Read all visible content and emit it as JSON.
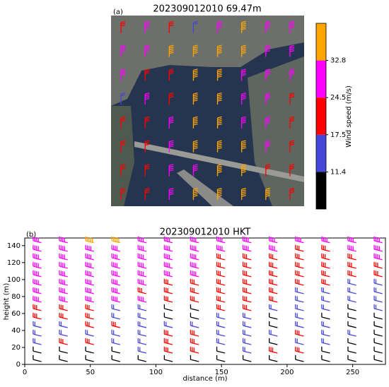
{
  "chart_data": [
    {
      "type": "barbs_image",
      "label": "(a)",
      "title": "202309012010  69.47m",
      "values": [
        [
          21,
          28,
          21,
          15,
          28,
          35,
          28,
          28
        ],
        [
          28,
          28,
          35,
          35,
          35,
          35,
          28,
          28
        ],
        [
          28,
          21,
          21,
          35,
          35,
          28,
          28,
          28
        ],
        [
          15,
          28,
          21,
          35,
          35,
          28,
          28,
          21
        ],
        [
          21,
          21,
          28,
          35,
          35,
          28,
          28,
          21
        ],
        [
          21,
          21,
          28,
          35,
          35,
          35,
          28,
          21
        ],
        [
          21,
          21,
          28,
          28,
          35,
          35,
          21,
          21
        ],
        [
          21,
          21,
          28,
          35,
          35,
          35,
          35,
          21
        ]
      ],
      "colorbar": {
        "label": "Wind speed (m/s)",
        "ticks": [
          11.4,
          17.5,
          24.5,
          32.8
        ],
        "colors": [
          "#000000",
          "#4646d8",
          "#ff0000",
          "#ff00ff",
          "#ffa500"
        ]
      }
    },
    {
      "type": "barbs",
      "label": "(b)",
      "title": "202309012010 HKT",
      "xlabel": "distance (m)",
      "ylabel": "height (m)",
      "x": [
        10,
        30,
        50,
        70,
        90,
        110,
        130,
        150,
        170,
        190,
        210,
        230,
        250,
        270
      ],
      "y": [
        145,
        135,
        125,
        115,
        105,
        95,
        85,
        75,
        65,
        55,
        45,
        35,
        25,
        15,
        5
      ],
      "values": [
        [
          28,
          28,
          35,
          35,
          28,
          28,
          28,
          28,
          28,
          28,
          28,
          28,
          28,
          28
        ],
        [
          28,
          28,
          28,
          28,
          28,
          28,
          28,
          28,
          28,
          28,
          21,
          21,
          28,
          28
        ],
        [
          28,
          28,
          28,
          28,
          28,
          28,
          28,
          21,
          21,
          21,
          21,
          21,
          21,
          28
        ],
        [
          28,
          28,
          28,
          28,
          28,
          28,
          28,
          21,
          21,
          21,
          21,
          21,
          21,
          21
        ],
        [
          28,
          28,
          28,
          28,
          28,
          28,
          28,
          21,
          21,
          21,
          21,
          21,
          21,
          21
        ],
        [
          28,
          28,
          28,
          28,
          28,
          21,
          21,
          21,
          21,
          21,
          21,
          21,
          15,
          15
        ],
        [
          28,
          28,
          28,
          28,
          21,
          21,
          21,
          21,
          21,
          21,
          15,
          15,
          15,
          15
        ],
        [
          28,
          28,
          28,
          28,
          28,
          21,
          21,
          21,
          21,
          21,
          15,
          15,
          15,
          15
        ],
        [
          21,
          21,
          21,
          15,
          15,
          9,
          9,
          21,
          21,
          15,
          15,
          15,
          9,
          15
        ],
        [
          21,
          21,
          21,
          15,
          15,
          9,
          9,
          15,
          15,
          9,
          15,
          9,
          9,
          9
        ],
        [
          15,
          15,
          21,
          21,
          15,
          15,
          15,
          15,
          15,
          9,
          15,
          15,
          9,
          9
        ],
        [
          15,
          15,
          15,
          15,
          15,
          21,
          21,
          15,
          15,
          15,
          21,
          15,
          15,
          9
        ],
        [
          15,
          21,
          21,
          15,
          15,
          21,
          21,
          15,
          15,
          9,
          15,
          15,
          9,
          9
        ],
        [
          9,
          9,
          9,
          9,
          15,
          21,
          21,
          9,
          15,
          21,
          21,
          9,
          9,
          9
        ],
        [
          9,
          9,
          9,
          9,
          9,
          9,
          9,
          9,
          9,
          9,
          9,
          9,
          9,
          9
        ]
      ],
      "xlim": [
        0,
        275
      ],
      "ylim": [
        0,
        149
      ],
      "xticks": [
        0,
        50,
        100,
        150,
        200,
        250
      ],
      "yticks": [
        0,
        20,
        40,
        60,
        80,
        100,
        120,
        140
      ]
    }
  ]
}
